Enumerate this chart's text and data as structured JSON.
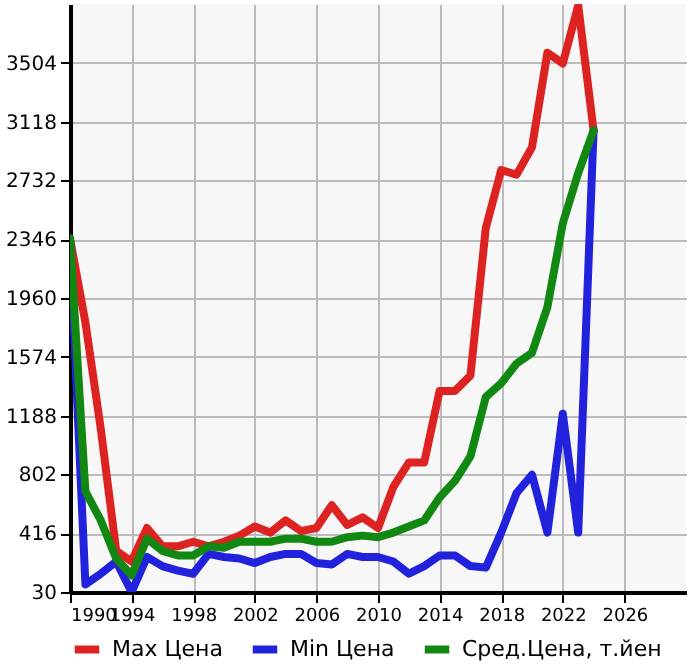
{
  "chart_data": {
    "type": "line",
    "x": [
      1990,
      1991,
      1992,
      1993,
      1994,
      1995,
      1996,
      1997,
      1998,
      1999,
      2000,
      2001,
      2002,
      2003,
      2004,
      2005,
      2006,
      2007,
      2008,
      2009,
      2010,
      2011,
      2012,
      2013,
      2014,
      2015,
      2016,
      2017,
      2018,
      2019,
      2020,
      2021,
      2022,
      2023,
      2024
    ],
    "series": [
      {
        "name": "Max Цена",
        "color": "#dd2222",
        "values": [
          2350,
          1800,
          1100,
          300,
          230,
          450,
          330,
          330,
          360,
          330,
          360,
          400,
          460,
          420,
          500,
          430,
          450,
          600,
          470,
          520,
          450,
          720,
          880,
          880,
          1350,
          1350,
          1450,
          2420,
          2800,
          2770,
          2950,
          3570,
          3500,
          3880,
          3060
        ]
      },
      {
        "name": "Min Цена",
        "color": "#2222dd",
        "values": [
          2350,
          80,
          150,
          230,
          30,
          260,
          200,
          170,
          150,
          280,
          260,
          250,
          220,
          260,
          280,
          280,
          220,
          210,
          280,
          260,
          260,
          230,
          150,
          200,
          270,
          270,
          200,
          190,
          420,
          680,
          800,
          420,
          1200,
          420,
          3060
        ]
      },
      {
        "name": "Сред.Цена, т.йен",
        "color": "#118811",
        "values": [
          2350,
          690,
          500,
          250,
          140,
          380,
          300,
          270,
          270,
          330,
          320,
          360,
          360,
          360,
          380,
          380,
          360,
          360,
          390,
          400,
          390,
          420,
          460,
          500,
          650,
          760,
          920,
          1310,
          1400,
          1530,
          1600,
          1900,
          2450,
          2780,
          3060
        ]
      }
    ],
    "xlim": [
      1990,
      2030
    ],
    "xticks": [
      1990,
      1994,
      1998,
      2002,
      2006,
      2010,
      2014,
      2018,
      2022,
      2026
    ],
    "ylim": [
      30,
      3890
    ],
    "yticks": [
      30,
      416,
      802,
      1188,
      1574,
      1960,
      2346,
      2732,
      3118,
      3504
    ],
    "grid": true,
    "legend": "bottom",
    "line_style": "solid",
    "marker": "none"
  }
}
